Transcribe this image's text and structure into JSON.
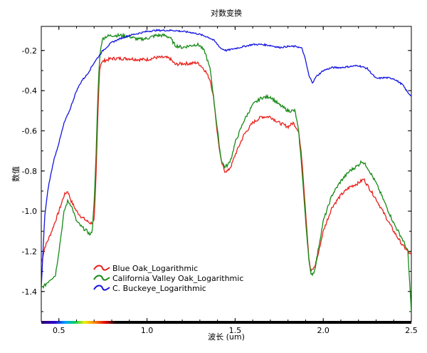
{
  "chart_data": {
    "type": "line",
    "title": "对数变换",
    "xlabel": "波长 (um)",
    "ylabel": "数值",
    "xlim": [
      0.4,
      2.5
    ],
    "ylim": [
      -1.55,
      -0.08
    ],
    "xticks": [
      0.5,
      1.0,
      1.5,
      2.0,
      2.5
    ],
    "xtick_labels": [
      "0.5",
      "1.0",
      "1.5",
      "2.0",
      "2.5"
    ],
    "yticks": [
      -0.2,
      -0.4,
      -0.6,
      -0.8,
      -1.0,
      -1.2,
      -1.4
    ],
    "ytick_labels": [
      "-0.2",
      "-0.4",
      "-0.6",
      "-0.8",
      "-1.0",
      "-1.2",
      "-1.4"
    ],
    "legend_position": "bottom-left",
    "series": [
      {
        "name": "Blue Oak_Logarithmic",
        "color": "#e8201c",
        "points": [
          [
            0.4,
            -1.26
          ],
          [
            0.42,
            -1.18
          ],
          [
            0.45,
            -1.12
          ],
          [
            0.48,
            -1.05
          ],
          [
            0.5,
            -1.0
          ],
          [
            0.53,
            -0.92
          ],
          [
            0.55,
            -0.9
          ],
          [
            0.57,
            -0.95
          ],
          [
            0.6,
            -1.0
          ],
          [
            0.63,
            -1.03
          ],
          [
            0.66,
            -1.05
          ],
          [
            0.68,
            -1.06
          ],
          [
            0.7,
            -1.05
          ],
          [
            0.71,
            -0.85
          ],
          [
            0.72,
            -0.55
          ],
          [
            0.73,
            -0.3
          ],
          [
            0.74,
            -0.26
          ],
          [
            0.76,
            -0.25
          ],
          [
            0.8,
            -0.24
          ],
          [
            0.85,
            -0.24
          ],
          [
            0.9,
            -0.24
          ],
          [
            0.95,
            -0.245
          ],
          [
            1.0,
            -0.245
          ],
          [
            1.05,
            -0.235
          ],
          [
            1.1,
            -0.235
          ],
          [
            1.13,
            -0.24
          ],
          [
            1.16,
            -0.27
          ],
          [
            1.2,
            -0.265
          ],
          [
            1.25,
            -0.265
          ],
          [
            1.28,
            -0.26
          ],
          [
            1.3,
            -0.27
          ],
          [
            1.33,
            -0.3
          ],
          [
            1.36,
            -0.35
          ],
          [
            1.38,
            -0.45
          ],
          [
            1.4,
            -0.62
          ],
          [
            1.42,
            -0.75
          ],
          [
            1.44,
            -0.8
          ],
          [
            1.46,
            -0.8
          ],
          [
            1.48,
            -0.77
          ],
          [
            1.5,
            -0.72
          ],
          [
            1.55,
            -0.62
          ],
          [
            1.6,
            -0.56
          ],
          [
            1.65,
            -0.53
          ],
          [
            1.7,
            -0.53
          ],
          [
            1.75,
            -0.56
          ],
          [
            1.8,
            -0.58
          ],
          [
            1.83,
            -0.56
          ],
          [
            1.86,
            -0.6
          ],
          [
            1.88,
            -0.75
          ],
          [
            1.9,
            -1.0
          ],
          [
            1.92,
            -1.25
          ],
          [
            1.93,
            -1.3
          ],
          [
            1.95,
            -1.28
          ],
          [
            1.97,
            -1.22
          ],
          [
            2.0,
            -1.1
          ],
          [
            2.05,
            -0.98
          ],
          [
            2.1,
            -0.92
          ],
          [
            2.15,
            -0.88
          ],
          [
            2.2,
            -0.86
          ],
          [
            2.23,
            -0.84
          ],
          [
            2.25,
            -0.87
          ],
          [
            2.3,
            -0.94
          ],
          [
            2.35,
            -1.02
          ],
          [
            2.4,
            -1.1
          ],
          [
            2.45,
            -1.17
          ],
          [
            2.5,
            -1.22
          ]
        ]
      },
      {
        "name": "California Valley Oak_Logarithmic",
        "color": "#178a17",
        "points": [
          [
            0.4,
            -1.38
          ],
          [
            0.42,
            -1.37
          ],
          [
            0.45,
            -1.34
          ],
          [
            0.48,
            -1.32
          ],
          [
            0.5,
            -1.2
          ],
          [
            0.53,
            -1.0
          ],
          [
            0.55,
            -0.95
          ],
          [
            0.57,
            -0.97
          ],
          [
            0.6,
            -1.05
          ],
          [
            0.63,
            -1.08
          ],
          [
            0.66,
            -1.1
          ],
          [
            0.68,
            -1.12
          ],
          [
            0.69,
            -1.09
          ],
          [
            0.7,
            -0.95
          ],
          [
            0.71,
            -0.75
          ],
          [
            0.72,
            -0.45
          ],
          [
            0.73,
            -0.25
          ],
          [
            0.74,
            -0.17
          ],
          [
            0.75,
            -0.14
          ],
          [
            0.77,
            -0.13
          ],
          [
            0.8,
            -0.125
          ],
          [
            0.85,
            -0.125
          ],
          [
            0.9,
            -0.13
          ],
          [
            0.95,
            -0.145
          ],
          [
            1.0,
            -0.14
          ],
          [
            1.05,
            -0.125
          ],
          [
            1.1,
            -0.125
          ],
          [
            1.13,
            -0.135
          ],
          [
            1.16,
            -0.175
          ],
          [
            1.2,
            -0.185
          ],
          [
            1.25,
            -0.175
          ],
          [
            1.28,
            -0.17
          ],
          [
            1.3,
            -0.175
          ],
          [
            1.33,
            -0.21
          ],
          [
            1.36,
            -0.3
          ],
          [
            1.38,
            -0.45
          ],
          [
            1.4,
            -0.6
          ],
          [
            1.42,
            -0.74
          ],
          [
            1.44,
            -0.78
          ],
          [
            1.46,
            -0.77
          ],
          [
            1.48,
            -0.73
          ],
          [
            1.5,
            -0.66
          ],
          [
            1.55,
            -0.55
          ],
          [
            1.6,
            -0.47
          ],
          [
            1.65,
            -0.435
          ],
          [
            1.7,
            -0.43
          ],
          [
            1.75,
            -0.47
          ],
          [
            1.8,
            -0.5
          ],
          [
            1.84,
            -0.5
          ],
          [
            1.86,
            -0.6
          ],
          [
            1.88,
            -0.8
          ],
          [
            1.9,
            -1.05
          ],
          [
            1.92,
            -1.25
          ],
          [
            1.93,
            -1.32
          ],
          [
            1.95,
            -1.3
          ],
          [
            1.97,
            -1.2
          ],
          [
            2.0,
            -1.05
          ],
          [
            2.05,
            -0.92
          ],
          [
            2.1,
            -0.85
          ],
          [
            2.15,
            -0.8
          ],
          [
            2.2,
            -0.77
          ],
          [
            2.22,
            -0.75
          ],
          [
            2.25,
            -0.78
          ],
          [
            2.3,
            -0.86
          ],
          [
            2.35,
            -0.96
          ],
          [
            2.4,
            -1.06
          ],
          [
            2.45,
            -1.14
          ],
          [
            2.48,
            -1.2
          ],
          [
            2.5,
            -1.5
          ]
        ]
      },
      {
        "name": "C. Buckeye_Logarithmic",
        "color": "#1515e0",
        "points": [
          [
            0.4,
            -1.38
          ],
          [
            0.41,
            -1.2
          ],
          [
            0.42,
            -1.02
          ],
          [
            0.44,
            -0.88
          ],
          [
            0.47,
            -0.75
          ],
          [
            0.5,
            -0.66
          ],
          [
            0.53,
            -0.56
          ],
          [
            0.56,
            -0.5
          ],
          [
            0.6,
            -0.4
          ],
          [
            0.63,
            -0.35
          ],
          [
            0.66,
            -0.32
          ],
          [
            0.7,
            -0.26
          ],
          [
            0.75,
            -0.2
          ],
          [
            0.8,
            -0.16
          ],
          [
            0.85,
            -0.14
          ],
          [
            0.9,
            -0.125
          ],
          [
            0.95,
            -0.115
          ],
          [
            1.0,
            -0.105
          ],
          [
            1.05,
            -0.1
          ],
          [
            1.1,
            -0.1
          ],
          [
            1.15,
            -0.1
          ],
          [
            1.2,
            -0.105
          ],
          [
            1.25,
            -0.11
          ],
          [
            1.3,
            -0.12
          ],
          [
            1.35,
            -0.135
          ],
          [
            1.38,
            -0.15
          ],
          [
            1.4,
            -0.17
          ],
          [
            1.42,
            -0.19
          ],
          [
            1.45,
            -0.2
          ],
          [
            1.5,
            -0.19
          ],
          [
            1.55,
            -0.18
          ],
          [
            1.6,
            -0.17
          ],
          [
            1.65,
            -0.17
          ],
          [
            1.7,
            -0.175
          ],
          [
            1.75,
            -0.185
          ],
          [
            1.8,
            -0.18
          ],
          [
            1.85,
            -0.18
          ],
          [
            1.88,
            -0.19
          ],
          [
            1.9,
            -0.25
          ],
          [
            1.92,
            -0.33
          ],
          [
            1.94,
            -0.36
          ],
          [
            1.96,
            -0.33
          ],
          [
            2.0,
            -0.3
          ],
          [
            2.05,
            -0.285
          ],
          [
            2.1,
            -0.285
          ],
          [
            2.15,
            -0.28
          ],
          [
            2.2,
            -0.275
          ],
          [
            2.25,
            -0.29
          ],
          [
            2.28,
            -0.32
          ],
          [
            2.3,
            -0.34
          ],
          [
            2.35,
            -0.335
          ],
          [
            2.4,
            -0.34
          ],
          [
            2.45,
            -0.37
          ],
          [
            2.48,
            -0.41
          ],
          [
            2.5,
            -0.425
          ]
        ]
      }
    ]
  }
}
